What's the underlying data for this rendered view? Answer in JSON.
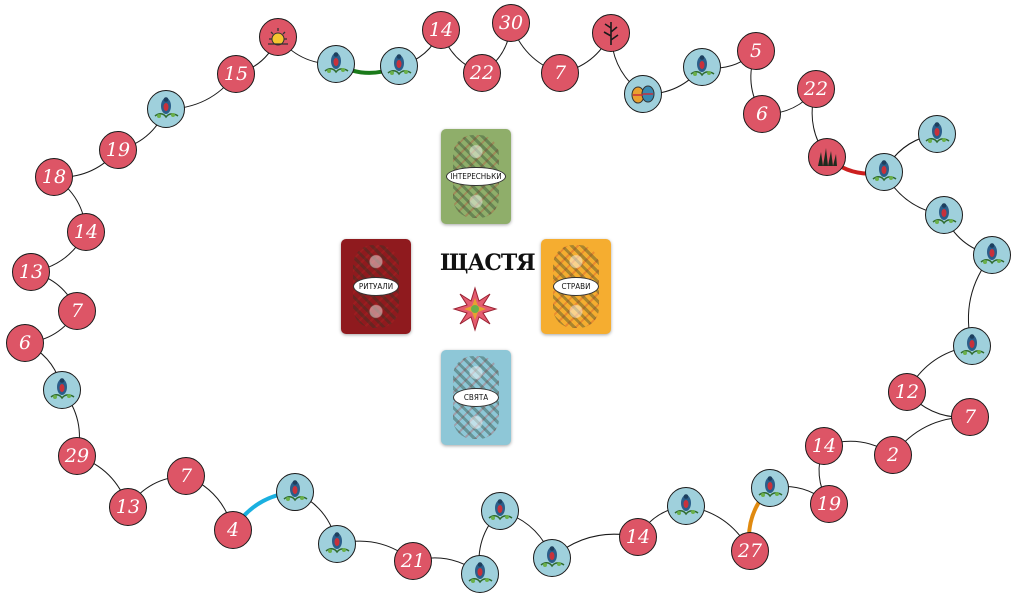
{
  "board": {
    "title": "ЩАСТЯ",
    "decks": [
      {
        "label": "ІНТЕРЕСНЬКИ",
        "color": "#8fae6a"
      },
      {
        "label": "РИТУАЛИ",
        "color": "#8f1a1e"
      },
      {
        "label": "СТРАВИ",
        "color": "#f5ad30"
      },
      {
        "label": "СВЯТА",
        "color": "#8ec7d7"
      }
    ],
    "path_spaces": [
      {
        "type": "bird"
      },
      {
        "type": "number",
        "value": "21"
      },
      {
        "type": "bird"
      },
      {
        "type": "bird"
      },
      {
        "type": "number",
        "value": "14"
      },
      {
        "type": "bird"
      },
      {
        "type": "number",
        "value": "27"
      },
      {
        "type": "bird"
      },
      {
        "type": "number",
        "value": "19"
      },
      {
        "type": "number",
        "value": "14"
      },
      {
        "type": "number",
        "value": "2"
      },
      {
        "type": "number",
        "value": "7"
      },
      {
        "type": "number",
        "value": "12"
      },
      {
        "type": "bird"
      },
      {
        "type": "bird"
      },
      {
        "type": "bird"
      },
      {
        "type": "bird"
      },
      {
        "type": "bird"
      },
      {
        "type": "grass"
      },
      {
        "type": "number",
        "value": "22"
      },
      {
        "type": "number",
        "value": "6"
      },
      {
        "type": "number",
        "value": "5"
      },
      {
        "type": "bird"
      },
      {
        "type": "eggs"
      },
      {
        "type": "plant"
      },
      {
        "type": "number",
        "value": "7"
      },
      {
        "type": "number",
        "value": "30"
      },
      {
        "type": "number",
        "value": "22"
      },
      {
        "type": "number",
        "value": "14"
      },
      {
        "type": "bird"
      },
      {
        "type": "bird"
      },
      {
        "type": "sun"
      },
      {
        "type": "number",
        "value": "15"
      },
      {
        "type": "bird"
      },
      {
        "type": "number",
        "value": "19"
      },
      {
        "type": "number",
        "value": "18"
      },
      {
        "type": "number",
        "value": "14"
      },
      {
        "type": "number",
        "value": "13"
      },
      {
        "type": "number",
        "value": "7"
      },
      {
        "type": "number",
        "value": "6"
      },
      {
        "type": "bird"
      },
      {
        "type": "number",
        "value": "29"
      },
      {
        "type": "number",
        "value": "13"
      },
      {
        "type": "number",
        "value": "7"
      },
      {
        "type": "number",
        "value": "4"
      },
      {
        "type": "bird"
      },
      {
        "type": "bird"
      }
    ],
    "shortcut_colors": {
      "green": "#1a7a1a",
      "red": "#cc1f1f",
      "blue": "#1ab0e0",
      "orange": "#e08a10"
    },
    "icons": {
      "bird": "bird-flower-icon",
      "grass": "grass-icon",
      "eggs": "easter-eggs-icon",
      "plant": "herb-icon",
      "sun": "sun-icon",
      "star": "eight-point-star-icon"
    }
  }
}
